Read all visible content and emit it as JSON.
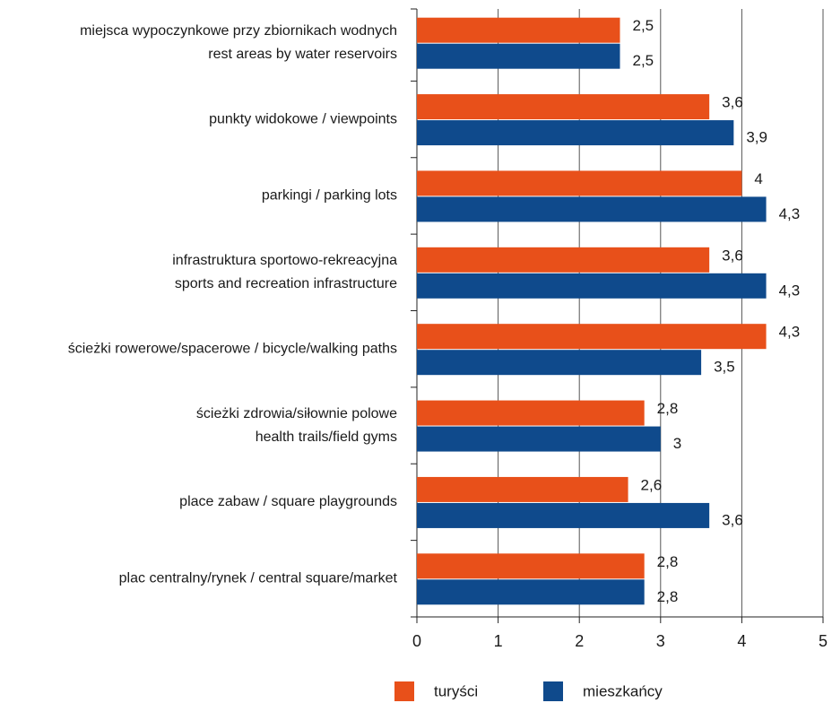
{
  "chart_data": {
    "type": "hbar",
    "categories": [
      [
        "miejsca wypoczynkowe przy zbiornikach wodnych",
        "rest areas by water reservoirs"
      ],
      [
        "punkty widokowe / viewpoints"
      ],
      [
        "parkingi / parking lots"
      ],
      [
        "infrastruktura sportowo-rekreacyjna",
        "sports and recreation infrastructure"
      ],
      [
        "ścieżki rowerowe/spacerowe / bicycle/walking paths"
      ],
      [
        "ścieżki zdrowia/siłownie polowe",
        "health trails/field gyms"
      ],
      [
        "place zabaw / square playgrounds"
      ],
      [
        "plac centralny/rynek / central square/market"
      ]
    ],
    "series": [
      {
        "name": "turyści",
        "color": "#e8501a",
        "values": [
          2.5,
          3.6,
          4,
          3.6,
          4.3,
          2.8,
          2.6,
          2.8
        ],
        "value_labels": [
          "2,5",
          "3,6",
          "4",
          "3,6",
          "4,3",
          "2,8",
          "2,6",
          "2,8"
        ]
      },
      {
        "name": "mieszkańcy",
        "color": "#0f4a8c",
        "values": [
          2.5,
          3.9,
          4.3,
          4.3,
          3.5,
          3,
          3.6,
          2.8
        ],
        "value_labels": [
          "2,5",
          "3,9",
          "4,3",
          "4,3",
          "3,5",
          "3",
          "3,6",
          "2,8"
        ]
      }
    ],
    "xlim": [
      0,
      5
    ],
    "xticks": [
      0,
      1,
      2,
      3,
      4,
      5
    ],
    "grid": true,
    "legend": "bottom"
  }
}
